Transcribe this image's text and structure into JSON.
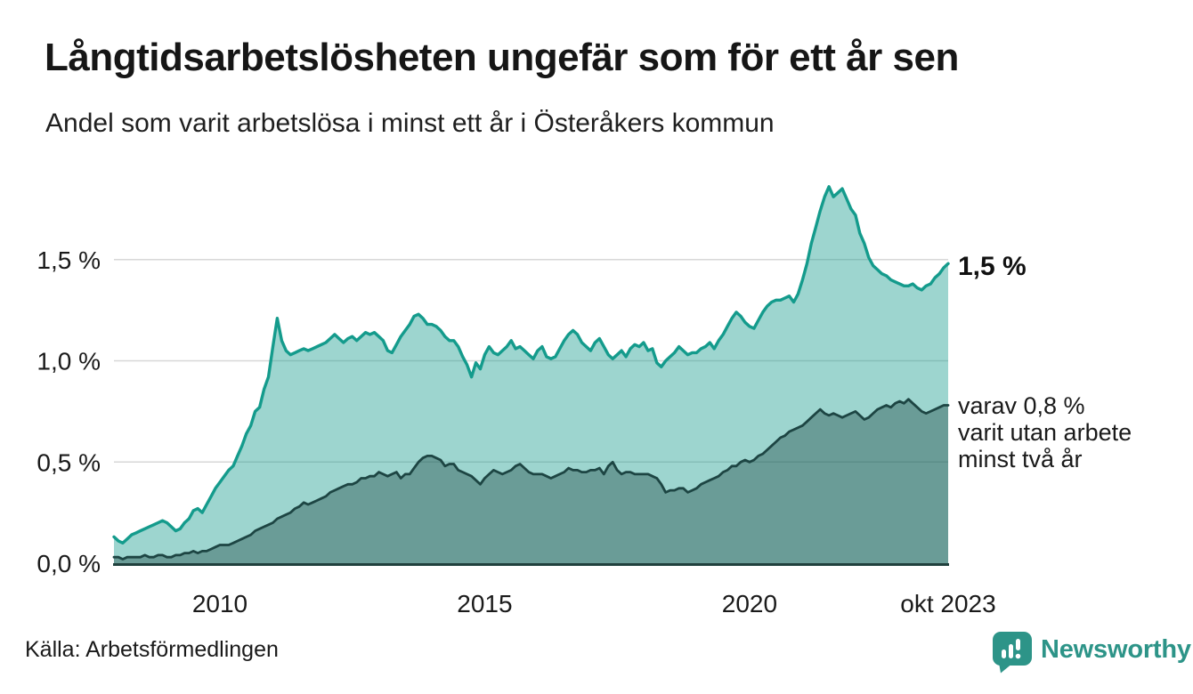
{
  "header": {
    "title": "Långtidsarbetslösheten ungefär som för ett år sen",
    "subtitle": "Andel som varit arbetslösa i minst ett år i Österåkers kommun"
  },
  "chart_data": {
    "type": "area",
    "unit": "%",
    "x_start": "jan 2008",
    "x_end": "okt 2023",
    "frequency": "monthly",
    "ylim": [
      0,
      1.9
    ],
    "grid": true,
    "y_ticks": [
      {
        "value": 0,
        "label": "0,0 %"
      },
      {
        "value": 0.5,
        "label": "0,5 %"
      },
      {
        "value": 1,
        "label": "1,0 %"
      },
      {
        "value": 1.5,
        "label": "1,5 %"
      }
    ],
    "x_ticks": [
      {
        "month_index": 24,
        "label": "2010"
      },
      {
        "month_index": 84,
        "label": "2015"
      },
      {
        "month_index": 144,
        "label": "2020"
      },
      {
        "month_index": 189,
        "label": "okt 2023"
      }
    ],
    "series": [
      {
        "name": "Andel arbetslösa minst ett år",
        "stroke": "#149b8c",
        "fill": "rgba(21,155,140,0.42)",
        "stroke_width": 3.4,
        "last_value_label": "1,5 %",
        "values": [
          0.13,
          0.11,
          0.1,
          0.12,
          0.14,
          0.15,
          0.16,
          0.17,
          0.18,
          0.19,
          0.2,
          0.21,
          0.2,
          0.18,
          0.16,
          0.17,
          0.2,
          0.22,
          0.26,
          0.27,
          0.25,
          0.29,
          0.33,
          0.37,
          0.4,
          0.43,
          0.46,
          0.48,
          0.53,
          0.58,
          0.64,
          0.68,
          0.75,
          0.77,
          0.86,
          0.92,
          1.07,
          1.21,
          1.1,
          1.05,
          1.03,
          1.04,
          1.05,
          1.06,
          1.05,
          1.06,
          1.07,
          1.08,
          1.09,
          1.11,
          1.13,
          1.11,
          1.09,
          1.11,
          1.12,
          1.1,
          1.12,
          1.14,
          1.13,
          1.14,
          1.12,
          1.1,
          1.05,
          1.04,
          1.08,
          1.12,
          1.15,
          1.18,
          1.22,
          1.23,
          1.21,
          1.18,
          1.18,
          1.17,
          1.15,
          1.12,
          1.1,
          1.1,
          1.07,
          1.02,
          0.98,
          0.92,
          0.99,
          0.96,
          1.03,
          1.07,
          1.04,
          1.03,
          1.05,
          1.07,
          1.1,
          1.06,
          1.07,
          1.05,
          1.03,
          1.01,
          1.05,
          1.07,
          1.02,
          1.01,
          1.02,
          1.06,
          1.1,
          1.13,
          1.15,
          1.13,
          1.09,
          1.07,
          1.05,
          1.09,
          1.11,
          1.07,
          1.03,
          1.01,
          1.03,
          1.05,
          1.02,
          1.06,
          1.08,
          1.07,
          1.09,
          1.05,
          1.06,
          0.99,
          0.97,
          1.0,
          1.02,
          1.04,
          1.07,
          1.05,
          1.03,
          1.04,
          1.04,
          1.06,
          1.07,
          1.09,
          1.06,
          1.1,
          1.13,
          1.17,
          1.21,
          1.24,
          1.22,
          1.19,
          1.17,
          1.16,
          1.2,
          1.24,
          1.27,
          1.29,
          1.3,
          1.3,
          1.31,
          1.32,
          1.29,
          1.33,
          1.4,
          1.48,
          1.58,
          1.66,
          1.74,
          1.81,
          1.86,
          1.81,
          1.83,
          1.85,
          1.8,
          1.75,
          1.72,
          1.63,
          1.58,
          1.51,
          1.47,
          1.45,
          1.43,
          1.42,
          1.4,
          1.39,
          1.38,
          1.37,
          1.37,
          1.38,
          1.36,
          1.35,
          1.37,
          1.38,
          1.41,
          1.43,
          1.46,
          1.48
        ]
      },
      {
        "name": "Varav utan arbete minst två år",
        "stroke": "#1d4543",
        "fill": "rgba(29,69,67,0.40)",
        "stroke_width": 2.8,
        "last_value_label": "0,8 %",
        "values": [
          0.03,
          0.03,
          0.02,
          0.03,
          0.03,
          0.03,
          0.03,
          0.04,
          0.03,
          0.03,
          0.04,
          0.04,
          0.03,
          0.03,
          0.04,
          0.04,
          0.05,
          0.05,
          0.06,
          0.05,
          0.06,
          0.06,
          0.07,
          0.08,
          0.09,
          0.09,
          0.09,
          0.1,
          0.11,
          0.12,
          0.13,
          0.14,
          0.16,
          0.17,
          0.18,
          0.19,
          0.2,
          0.22,
          0.23,
          0.24,
          0.25,
          0.27,
          0.28,
          0.3,
          0.29,
          0.3,
          0.31,
          0.32,
          0.33,
          0.35,
          0.36,
          0.37,
          0.38,
          0.39,
          0.39,
          0.4,
          0.42,
          0.42,
          0.43,
          0.43,
          0.45,
          0.44,
          0.43,
          0.44,
          0.45,
          0.42,
          0.44,
          0.44,
          0.47,
          0.5,
          0.52,
          0.53,
          0.53,
          0.52,
          0.51,
          0.48,
          0.49,
          0.49,
          0.46,
          0.45,
          0.44,
          0.43,
          0.41,
          0.39,
          0.42,
          0.44,
          0.46,
          0.45,
          0.44,
          0.45,
          0.46,
          0.48,
          0.49,
          0.47,
          0.45,
          0.44,
          0.44,
          0.44,
          0.43,
          0.42,
          0.43,
          0.44,
          0.45,
          0.47,
          0.46,
          0.46,
          0.45,
          0.45,
          0.46,
          0.46,
          0.47,
          0.44,
          0.48,
          0.5,
          0.46,
          0.44,
          0.45,
          0.45,
          0.44,
          0.44,
          0.44,
          0.44,
          0.43,
          0.42,
          0.39,
          0.35,
          0.36,
          0.36,
          0.37,
          0.37,
          0.35,
          0.36,
          0.37,
          0.39,
          0.4,
          0.41,
          0.42,
          0.43,
          0.45,
          0.46,
          0.48,
          0.48,
          0.5,
          0.51,
          0.5,
          0.51,
          0.53,
          0.54,
          0.56,
          0.58,
          0.6,
          0.62,
          0.63,
          0.65,
          0.66,
          0.67,
          0.68,
          0.7,
          0.72,
          0.74,
          0.76,
          0.74,
          0.73,
          0.74,
          0.73,
          0.72,
          0.73,
          0.74,
          0.75,
          0.73,
          0.71,
          0.72,
          0.74,
          0.76,
          0.77,
          0.78,
          0.77,
          0.79,
          0.8,
          0.79,
          0.81,
          0.79,
          0.77,
          0.75,
          0.74,
          0.75,
          0.76,
          0.77,
          0.78,
          0.78
        ]
      }
    ],
    "annotations": {
      "primary": "1,5 %",
      "secondary_lines": [
        "varav 0,8 %",
        "varit utan arbete",
        "minst två år"
      ]
    }
  },
  "footer": {
    "source": "Källa: Arbetsförmedlingen",
    "logo_text": "Newsworthy"
  },
  "colors": {
    "accent": "#149b8c",
    "dark": "#1d4543",
    "grid": "#d7d7d7",
    "baseline": "#20403d",
    "text": "#1a1a1a",
    "logo": "#2d9488"
  }
}
